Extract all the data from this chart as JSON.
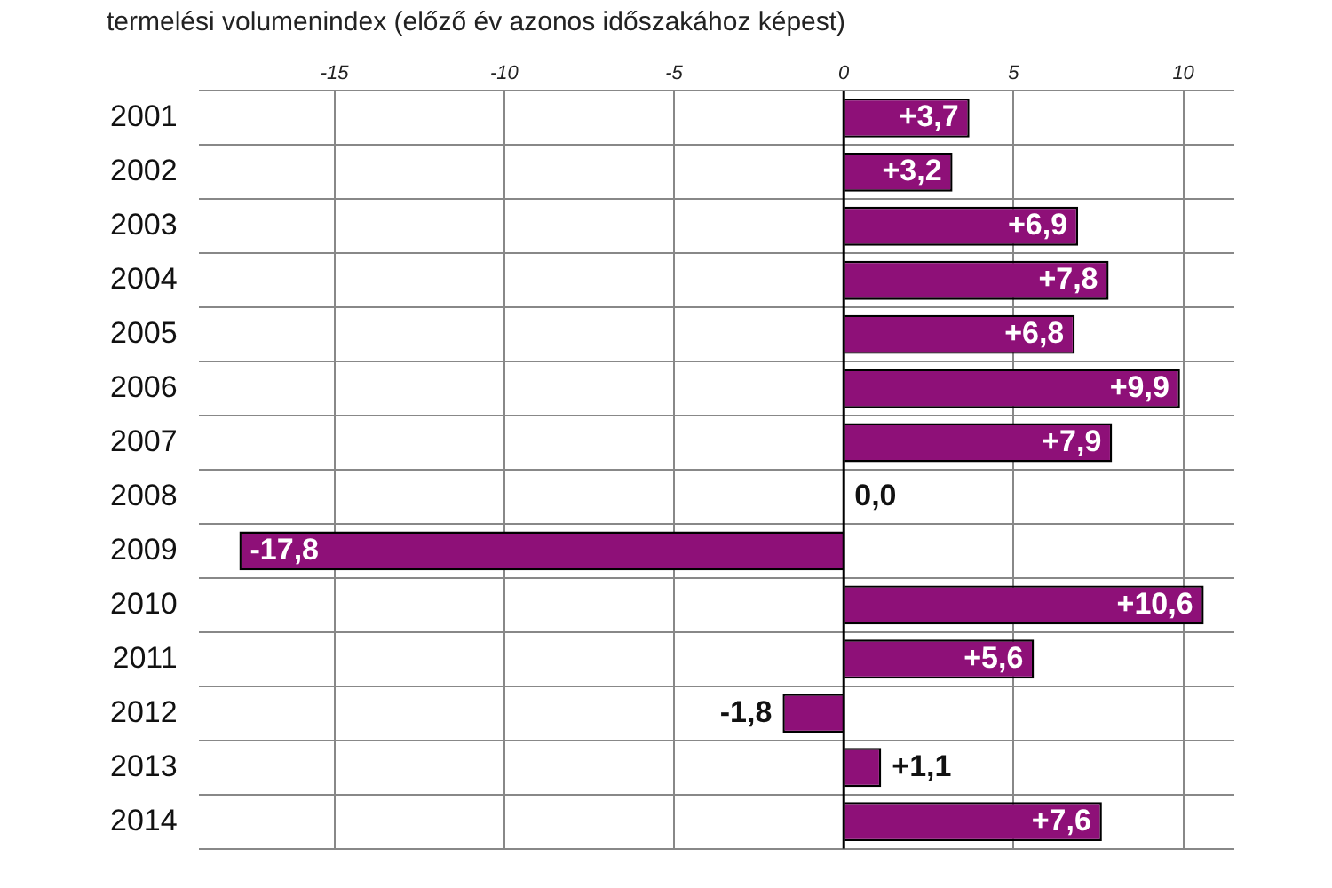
{
  "chart_data": {
    "type": "bar",
    "orientation": "horizontal",
    "title": "termelési volumenindex (előző év azonos időszakához képest)",
    "categories": [
      "2001",
      "2002",
      "2003",
      "2004",
      "2005",
      "2006",
      "2007",
      "2008",
      "2009",
      "2010",
      "2011",
      "2012",
      "2013",
      "2014"
    ],
    "values": [
      3.7,
      3.2,
      6.9,
      7.8,
      6.8,
      9.9,
      7.9,
      0.0,
      -17.8,
      10.6,
      5.6,
      -1.8,
      1.1,
      7.6
    ],
    "value_labels": [
      "+3,7",
      "+3,2",
      "+6,9",
      "+7,8",
      "+6,8",
      "+9,9",
      "+7,9",
      "0,0",
      "-17,8",
      "+10,6",
      "+5,6",
      "-1,8",
      "+1,1",
      "+7,6"
    ],
    "color": "#8e1078",
    "xlim": [
      -19,
      11.5
    ],
    "xticks": [
      -15,
      -10,
      -5,
      0,
      5,
      10
    ],
    "grid": true,
    "legend": false
  }
}
